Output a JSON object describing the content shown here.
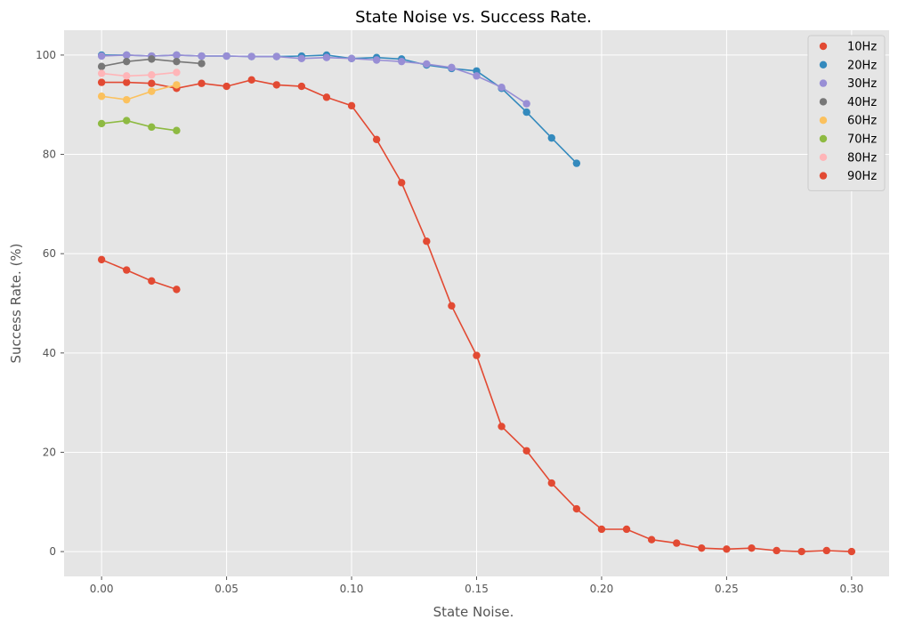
{
  "chart_data": {
    "type": "line",
    "title": "State Noise vs. Success Rate.",
    "xlabel": "State Noise.",
    "ylabel": "Success Rate. (%)",
    "xlim": [
      -0.015,
      0.315
    ],
    "ylim": [
      -5,
      105
    ],
    "x_ticks": [
      0.0,
      0.05,
      0.1,
      0.15,
      0.2,
      0.25,
      0.3
    ],
    "x_tick_labels": [
      "0.00",
      "0.05",
      "0.10",
      "0.15",
      "0.20",
      "0.25",
      "0.30"
    ],
    "y_ticks": [
      0,
      20,
      40,
      60,
      80,
      100
    ],
    "y_tick_labels": [
      "0",
      "20",
      "40",
      "60",
      "80",
      "100"
    ],
    "grid": true,
    "legend_position": "top-right",
    "series": [
      {
        "name": "10Hz",
        "color": "#E24A33",
        "x": [
          0.0,
          0.01,
          0.02,
          0.03,
          0.04,
          0.05,
          0.06,
          0.07,
          0.08,
          0.09,
          0.1,
          0.11,
          0.12,
          0.13,
          0.14,
          0.15,
          0.16,
          0.17,
          0.18,
          0.19,
          0.2,
          0.21,
          0.22,
          0.23,
          0.24,
          0.25,
          0.26,
          0.27,
          0.28,
          0.29,
          0.3
        ],
        "y": [
          94.5,
          94.5,
          94.3,
          93.3,
          94.3,
          93.7,
          95.0,
          94.0,
          93.7,
          91.5,
          89.8,
          83.0,
          74.3,
          62.5,
          49.5,
          39.5,
          25.2,
          20.3,
          13.8,
          8.6,
          4.5,
          4.5,
          2.4,
          1.7,
          0.7,
          0.5,
          0.7,
          0.2,
          0.0,
          0.2,
          0.0
        ]
      },
      {
        "name": "20Hz",
        "color": "#348ABD",
        "x": [
          0.0,
          0.01,
          0.02,
          0.03,
          0.04,
          0.05,
          0.06,
          0.07,
          0.08,
          0.09,
          0.1,
          0.11,
          0.12,
          0.13,
          0.14,
          0.15,
          0.16,
          0.17,
          0.18,
          0.19
        ],
        "y": [
          100.0,
          100.0,
          99.8,
          100.0,
          99.8,
          99.8,
          99.7,
          99.7,
          99.8,
          100.0,
          99.3,
          99.5,
          99.2,
          98.0,
          97.3,
          96.8,
          93.3,
          88.5,
          83.3,
          78.2
        ]
      },
      {
        "name": "30Hz",
        "color": "#988ED5",
        "x": [
          0.0,
          0.01,
          0.02,
          0.03,
          0.04,
          0.05,
          0.06,
          0.07,
          0.08,
          0.09,
          0.1,
          0.11,
          0.12,
          0.13,
          0.14,
          0.15,
          0.16,
          0.17
        ],
        "y": [
          99.8,
          100.0,
          99.8,
          100.0,
          99.8,
          99.8,
          99.7,
          99.7,
          99.3,
          99.5,
          99.3,
          99.0,
          98.7,
          98.2,
          97.5,
          95.8,
          93.5,
          90.2
        ]
      },
      {
        "name": "40Hz",
        "color": "#777777",
        "x": [
          0.0,
          0.01,
          0.02,
          0.03,
          0.04
        ],
        "y": [
          97.7,
          98.7,
          99.2,
          98.7,
          98.3
        ]
      },
      {
        "name": "60Hz",
        "color": "#FBC15E",
        "x": [
          0.0,
          0.01,
          0.02,
          0.03
        ],
        "y": [
          91.7,
          91.0,
          92.7,
          94.0
        ]
      },
      {
        "name": "70Hz",
        "color": "#8EBA42",
        "x": [
          0.0,
          0.01,
          0.02,
          0.03
        ],
        "y": [
          86.2,
          86.8,
          85.5,
          84.8
        ]
      },
      {
        "name": "80Hz",
        "color": "#FFB5B8",
        "x": [
          0.0,
          0.01,
          0.02,
          0.03
        ],
        "y": [
          96.3,
          95.8,
          96.0,
          96.5
        ]
      },
      {
        "name": "90Hz",
        "color": "#E24A33",
        "x": [
          0.0,
          0.01,
          0.02,
          0.03
        ],
        "y": [
          58.8,
          56.7,
          54.5,
          52.8
        ]
      }
    ]
  }
}
